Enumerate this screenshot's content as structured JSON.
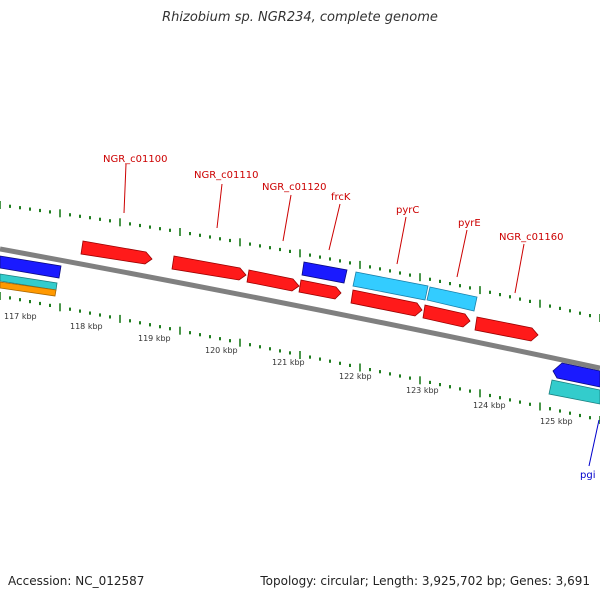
{
  "title": "Rhizobium sp. NGR234, complete genome",
  "footer": {
    "accession": "Accession: NC_012587",
    "summary": "Topology: circular; Length: 3,925,702 bp; Genes: 3,691"
  },
  "colors": {
    "backbone": "#808080",
    "gene_red": "#ff1a1a",
    "gene_blue": "#1a1aff",
    "gene_cyan": "#33ccff",
    "gene_teal": "#33cccc",
    "gene_orange": "#ff9900",
    "tick_green": "#1e7d1e",
    "label_red": "#cc0000",
    "label_blue": "#0000cc",
    "label_black": "#333333"
  },
  "scale_labels": [
    "117 kbp",
    "118 kbp",
    "119 kbp",
    "120 kbp",
    "121 kbp",
    "122 kbp",
    "123 kbp",
    "124 kbp",
    "125 kbp"
  ],
  "gene_labels": [
    "NGR_c01100",
    "NGR_c01110",
    "NGR_c01120",
    "frcK",
    "pyrC",
    "pyrE",
    "NGR_c01160",
    "pgi"
  ]
}
